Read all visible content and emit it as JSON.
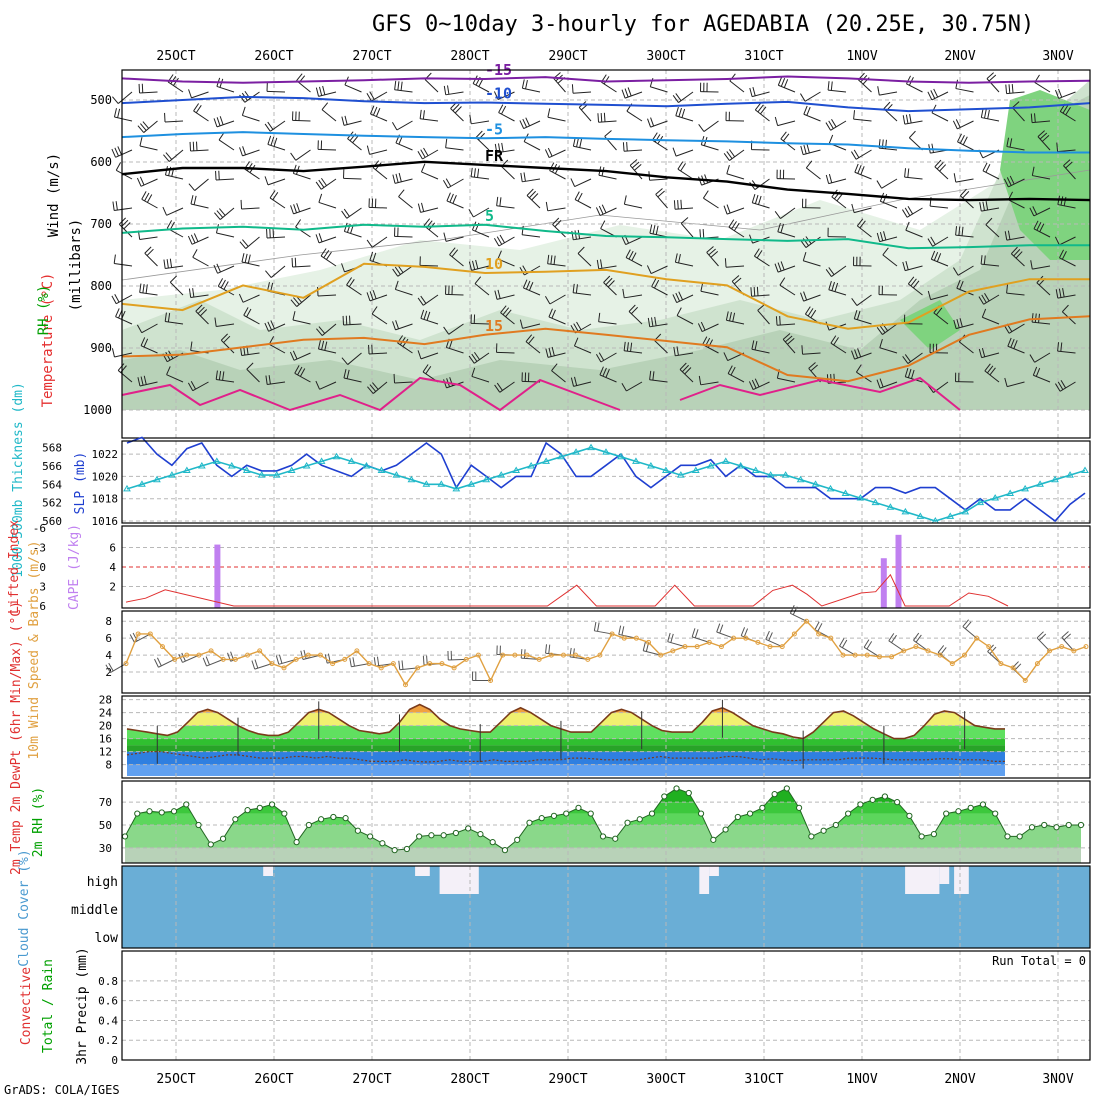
{
  "title": "GFS 0~10day 3-hourly for AGEDABIA (20.25E, 30.75N)",
  "credit": "GrADS: COLA/IGES",
  "colors": {
    "frame": "#000000",
    "grid": "#bbbbbb"
  },
  "chart_data": [
    {
      "panel": "upper-air",
      "type": "contour",
      "x_ticks": [
        "25OCT",
        "26OCT",
        "27OCT",
        "28OCT",
        "29OCT",
        "30OCT",
        "31OCT",
        "1NOV",
        "2NOV",
        "3NOV"
      ],
      "ylabel": "Wind (m/s)",
      "legend": {
        "temperature": "Temperature (°C)",
        "rh": "RH (%)"
      },
      "y_unit_label": "(millibars)",
      "y_ticks": [
        "500",
        "600",
        "700",
        "800",
        "900",
        "1000"
      ],
      "temperature_contours": [
        {
          "level": "-15",
          "color": "#7b1fa2",
          "pressure": [
            465,
            470,
            472,
            470,
            468,
            465,
            466,
            463,
            470,
            468,
            466,
            462,
            465,
            470,
            472,
            470,
            469
          ]
        },
        {
          "level": "-10",
          "color": "#1f4fd0",
          "pressure": [
            505,
            500,
            495,
            497,
            502,
            505,
            504,
            506,
            508,
            510,
            506,
            503,
            512,
            518,
            515,
            512,
            505
          ]
        },
        {
          "level": "-5",
          "color": "#1e90e0",
          "pressure": [
            560,
            555,
            552,
            555,
            558,
            560,
            562,
            560,
            563,
            565,
            567,
            570,
            572,
            578,
            582,
            585,
            585
          ]
        },
        {
          "level": "FR",
          "color": "#000000",
          "pressure": [
            620,
            610,
            610,
            615,
            608,
            600,
            605,
            610,
            615,
            625,
            632,
            645,
            652,
            660,
            662,
            660,
            662
          ]
        },
        {
          "level": "5",
          "color": "#10b98a",
          "pressure": [
            715,
            708,
            705,
            710,
            702,
            705,
            702,
            712,
            720,
            722,
            725,
            728,
            725,
            740,
            738,
            735,
            735
          ]
        },
        {
          "level": "10",
          "color": "#e0a020",
          "pressure": [
            830,
            840,
            800,
            820,
            765,
            770,
            780,
            778,
            775,
            790,
            800,
            850,
            870,
            860,
            810,
            790,
            790
          ]
        },
        {
          "level": "15",
          "color": "#e07a20",
          "pressure": [
            915,
            912,
            900,
            888,
            885,
            895,
            880,
            870,
            880,
            890,
            900,
            945,
            955,
            930,
            880,
            855,
            850
          ]
        }
      ],
      "contour_labels": [
        "-15",
        "-10",
        "-5",
        "FR",
        "5",
        "10",
        "15",
        "-10",
        "-5",
        "FR",
        "5",
        "10",
        "-5",
        "15",
        "30",
        "50",
        "50",
        "30",
        "50",
        "10",
        "30"
      ]
    },
    {
      "panel": "thickness-slp",
      "type": "line",
      "ylabel_left": "1000-500mb Thickness (dm)",
      "ylabel_right": "SLP (mb)",
      "left_ticks": [
        "568",
        "566",
        "564",
        "562",
        "560"
      ],
      "right_ticks": [
        "1022",
        "1020",
        "1018",
        "1016"
      ],
      "series": [
        {
          "name": "SLP (mb)",
          "color": "#1f3fd0",
          "y_axis": "right",
          "values": [
            1023,
            1023.5,
            1022,
            1021,
            1022.5,
            1023,
            1021,
            1020,
            1021,
            1020.5,
            1020.5,
            1021,
            1022,
            1021,
            1020.5,
            1020,
            1021,
            1020.5,
            1021,
            1022,
            1023,
            1022,
            1019,
            1021,
            1020,
            1019,
            1020,
            1020,
            1023,
            1022,
            1020,
            1020,
            1021,
            1022,
            1020,
            1019,
            1020,
            1021,
            1021,
            1021.5,
            1020,
            1021,
            1020,
            1020,
            1019,
            1019,
            1019,
            1018,
            1018,
            1018,
            1019,
            1019,
            1018.5,
            1019,
            1019,
            1018,
            1017,
            1018,
            1017,
            1017,
            1018,
            1017,
            1016,
            1017.5,
            1018.5
          ]
        },
        {
          "name": "1000-500mb Thickness (dm)",
          "color": "#20b8c8",
          "y_axis": "left",
          "values": [
            563.5,
            564,
            564.5,
            565,
            565.5,
            566,
            566.5,
            566,
            565.5,
            565,
            565,
            565.5,
            566,
            566.5,
            567,
            566.5,
            566,
            565.5,
            565,
            564.5,
            564,
            564,
            563.5,
            564,
            564.5,
            565,
            565.5,
            566,
            566.5,
            567,
            567.5,
            568,
            567.5,
            567,
            566.5,
            566,
            565.5,
            565,
            565.5,
            566,
            566.5,
            566,
            565.5,
            565,
            565,
            564.5,
            564,
            563.5,
            563,
            562.5,
            562,
            561.5,
            561,
            560.5,
            560,
            560.5,
            561,
            562,
            562.5,
            563,
            563.5,
            564,
            564.5,
            565,
            565.5
          ]
        }
      ]
    },
    {
      "panel": "instability",
      "type": "bar",
      "ylabel_left": "Lifted Index",
      "ylabel_right": "CAPE (J/kg)",
      "left_ticks": [
        "-6",
        "-3",
        "0",
        "3",
        "6"
      ],
      "right_ticks": [
        "6",
        "4",
        "2"
      ],
      "cape_bars": [
        {
          "x": 0.8,
          "value": 6.3
        },
        {
          "x": 7.6,
          "value": 4.9
        },
        {
          "x": 7.75,
          "value": 7.3
        }
      ],
      "lifted_index": [
        [
          0,
          5.4
        ],
        [
          0.2,
          4.8
        ],
        [
          0.4,
          3.5
        ],
        [
          1.1,
          6
        ],
        [
          4.3,
          6
        ],
        [
          4.6,
          2.8
        ],
        [
          4.8,
          6
        ],
        [
          5.4,
          6
        ],
        [
          5.6,
          2.8
        ],
        [
          5.8,
          6
        ],
        [
          6.4,
          6
        ],
        [
          6.6,
          3.6
        ],
        [
          6.8,
          2.8
        ],
        [
          6.95,
          4.2
        ],
        [
          7.1,
          6
        ],
        [
          7.5,
          4
        ],
        [
          7.65,
          3.8
        ],
        [
          7.8,
          1.2
        ],
        [
          7.95,
          6
        ],
        [
          8.4,
          6
        ],
        [
          8.6,
          4
        ],
        [
          8.8,
          4.5
        ],
        [
          9.0,
          6
        ]
      ],
      "reference_line": 0
    },
    {
      "panel": "wind10m",
      "type": "line",
      "ylabel": "10m Wind Speed & Barbs (m/s)",
      "y_ticks": [
        "8",
        "6",
        "4",
        "2"
      ],
      "series": [
        {
          "name": "10m Wind Speed",
          "color": "#e0a040",
          "values": [
            3,
            6.5,
            6.5,
            5,
            3.5,
            4,
            4,
            4.5,
            3.5,
            3.5,
            4,
            4.5,
            3,
            2.5,
            3.5,
            4,
            4,
            3,
            3.5,
            4.5,
            3,
            2.5,
            3,
            0.5,
            2.5,
            3,
            3,
            2.5,
            3.5,
            4,
            1,
            4,
            4,
            4,
            3.5,
            4,
            4,
            4,
            3.5,
            4,
            6.5,
            6,
            6,
            5.5,
            4,
            4.5,
            5,
            5,
            5.5,
            5,
            6,
            6,
            5.5,
            5,
            5,
            6.5,
            8,
            6.5,
            6,
            4,
            4,
            4,
            3.8,
            3.8,
            4.5,
            5,
            4.5,
            4,
            3,
            4,
            6,
            5,
            3,
            2.5,
            1,
            3,
            4.5,
            5,
            4.5,
            5
          ]
        }
      ]
    },
    {
      "panel": "temperature2m",
      "type": "area",
      "ylabel": "2m Temp 2m DewPt (6hr Min/Max) (°C)",
      "y_ticks": [
        "28",
        "24",
        "20",
        "16",
        "12",
        "8"
      ],
      "temp_values": [
        19,
        18.5,
        18,
        17.5,
        17,
        18,
        21,
        24,
        25,
        24,
        22,
        20,
        18.5,
        17.5,
        17,
        17,
        18,
        21,
        24,
        25,
        24,
        22,
        20,
        18.5,
        18,
        17.5,
        18,
        21,
        25,
        26.5,
        25,
        22,
        20,
        19,
        18.5,
        18,
        18,
        21,
        24,
        25.5,
        24,
        22,
        20,
        19,
        18,
        18,
        18,
        21,
        24,
        25,
        24,
        22,
        20,
        18.5,
        18,
        18,
        18,
        21,
        24.5,
        25.5,
        24,
        22,
        20,
        19,
        18,
        17.5,
        16.5,
        16,
        18,
        21,
        24,
        24.5,
        23,
        21,
        19,
        17.5,
        16,
        16,
        17,
        20,
        23.5,
        24.5,
        24,
        22,
        20,
        19.5,
        19,
        19
      ],
      "dewpoint_values": [
        11,
        11.5,
        12,
        12,
        11.5,
        11,
        10.5,
        10,
        10.5,
        11,
        11,
        10.5,
        10,
        10,
        10,
        10.5,
        10.5,
        10,
        10.5,
        10,
        10,
        9.5,
        9,
        9,
        9,
        9.5,
        9,
        8.8,
        9,
        9.5,
        9,
        9,
        9,
        9.5,
        9,
        9,
        9,
        9.5,
        9.5,
        9.5,
        10,
        10,
        9.8,
        9.5,
        9.5,
        9.5,
        9.5,
        10,
        10.5,
        10,
        10,
        10,
        10,
        10,
        10.5,
        10.5,
        10,
        9.5,
        9.8,
        9.5,
        9.2,
        9.5,
        9.5,
        9.5,
        9.5,
        10,
        10,
        10,
        9.8,
        9.5,
        9.5,
        9.5,
        9.5,
        9.8,
        9.8,
        9.5,
        9.5,
        9.5,
        9,
        9
      ]
    },
    {
      "panel": "rh2m",
      "type": "area",
      "ylabel": "2m RH (%)",
      "y_ticks": [
        "70",
        "50",
        "30"
      ],
      "values": [
        40,
        60,
        62,
        61,
        62,
        68,
        50,
        33,
        38,
        55,
        63,
        65,
        68,
        60,
        35,
        50,
        55,
        57,
        56,
        45,
        40,
        34,
        28,
        29,
        40,
        41,
        41,
        43,
        47,
        42,
        35,
        28,
        37,
        52,
        56,
        58,
        60,
        65,
        60,
        40,
        38,
        52,
        55,
        60,
        75,
        82,
        78,
        60,
        37,
        46,
        57,
        60,
        65,
        77,
        82,
        65,
        40,
        45,
        50,
        60,
        68,
        72,
        75,
        70,
        58,
        40,
        42,
        60,
        62,
        65,
        68,
        60,
        40,
        40,
        48,
        50,
        48,
        50,
        50
      ]
    },
    {
      "panel": "cloud-cover",
      "type": "heatmap",
      "ylabel": "Cloud Cover (%)",
      "y_ticks": [
        "high",
        "middle",
        "low"
      ],
      "clear_blocks_high": [
        [
          1.4,
          1.5,
          "top"
        ],
        [
          2.95,
          3.1,
          "top"
        ],
        [
          3.2,
          3.6,
          "full"
        ],
        [
          5.85,
          5.95,
          "full"
        ],
        [
          5.95,
          6.05,
          "top"
        ],
        [
          7.95,
          8.3,
          "full"
        ],
        [
          8.3,
          8.4,
          "mid"
        ],
        [
          8.45,
          8.6,
          "full"
        ]
      ]
    },
    {
      "panel": "precip",
      "type": "bar",
      "ylabel": "3hr Precip (mm)",
      "legend": {
        "total_rain": "Total / Rain",
        "convective": "Convective"
      },
      "y_ticks": [
        "0.8",
        "0.6",
        "0.4",
        "0.2",
        "0"
      ],
      "values": [],
      "run_total": "Run Total = 0"
    }
  ]
}
